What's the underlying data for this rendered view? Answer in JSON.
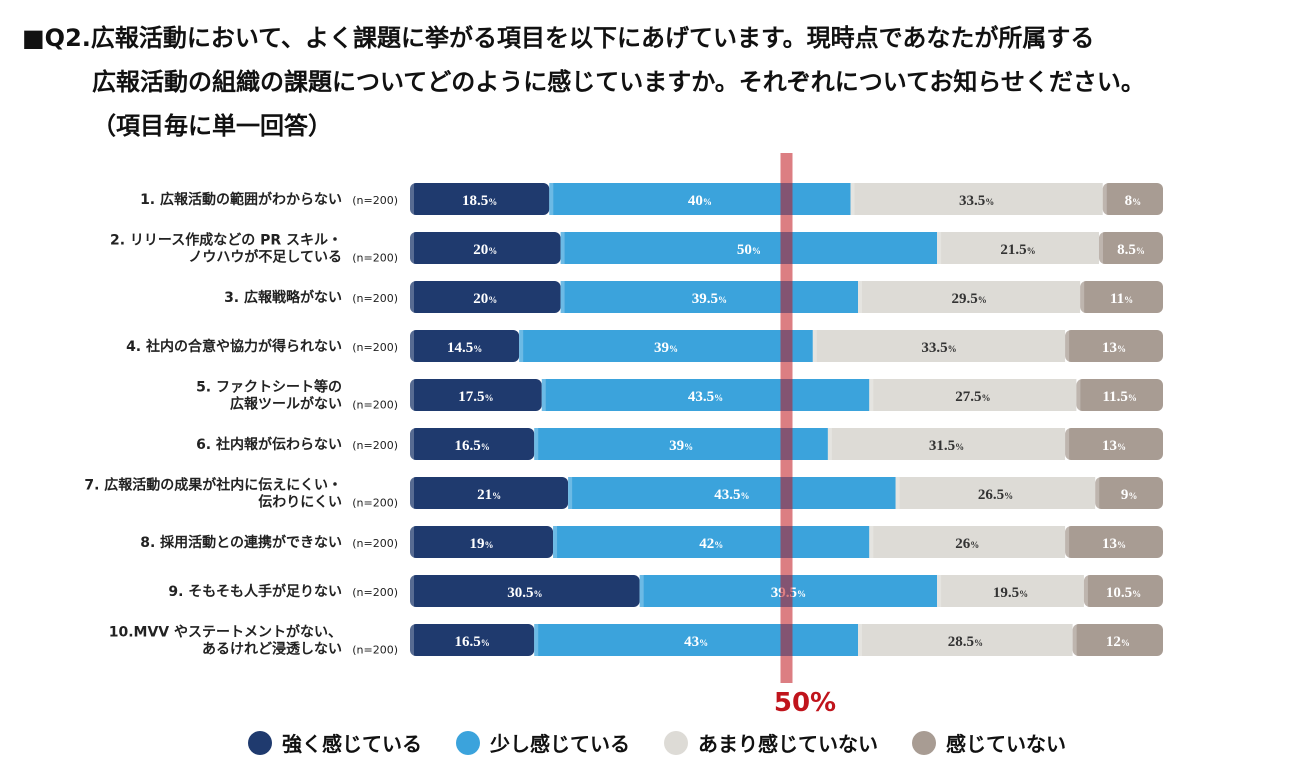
{
  "title": {
    "line1": "■Q2.広報活動において、よく課題に挙がる項目を以下にあげています。現時点であなたが所属する",
    "line2": "広報活動の組織の課題についてどのように感じていますか。それぞれについてお知らせください。",
    "line3": "（項目毎に単一回答）"
  },
  "chart_data": {
    "type": "bar",
    "orientation": "horizontal-stacked-100",
    "categories": [
      {
        "label": [
          "1. 広報活動の範囲がわからない"
        ],
        "n": "(n=200)"
      },
      {
        "label": [
          "2. リリース作成などの PR スキル・",
          "ノウハウが不足している"
        ],
        "n": "(n=200)"
      },
      {
        "label": [
          "3. 広報戦略がない"
        ],
        "n": "(n=200)"
      },
      {
        "label": [
          "4. 社内の合意や協力が得られない"
        ],
        "n": "(n=200)"
      },
      {
        "label": [
          "5. ファクトシート等の",
          "広報ツールがない"
        ],
        "n": "(n=200)"
      },
      {
        "label": [
          "6. 社内報が伝わらない"
        ],
        "n": "(n=200)"
      },
      {
        "label": [
          "7. 広報活動の成果が社内に伝えにくい・",
          "伝わりにくい"
        ],
        "n": "(n=200)"
      },
      {
        "label": [
          "8. 採用活動との連携ができない"
        ],
        "n": "(n=200)"
      },
      {
        "label": [
          "9. そもそも人手が足りない"
        ],
        "n": "(n=200)"
      },
      {
        "label": [
          "10.MVV やステートメントがない、",
          "あるけれど浸透しない"
        ],
        "n": "(n=200)"
      }
    ],
    "series": [
      {
        "name": "強く感じている",
        "color": "#1f3a6e",
        "textColor": "#ffffff",
        "values": [
          18.5,
          20,
          20,
          14.5,
          17.5,
          16.5,
          21,
          19,
          30.5,
          16.5
        ]
      },
      {
        "name": "少し感じている",
        "color": "#3ba3dc",
        "textColor": "#ffffff",
        "values": [
          40,
          50,
          39.5,
          39,
          43.5,
          39,
          43.5,
          42,
          39.5,
          43
        ]
      },
      {
        "name": "あまり感じていない",
        "color": "#dddbd6",
        "textColor": "#333333",
        "values": [
          33.5,
          21.5,
          29.5,
          33.5,
          27.5,
          31.5,
          26.5,
          26,
          19.5,
          28.5
        ]
      },
      {
        "name": "感じていない",
        "color": "#a89c93",
        "textColor": "#ffffff",
        "values": [
          8,
          8.5,
          11,
          13,
          11.5,
          13,
          9,
          13,
          10.5,
          12
        ]
      }
    ],
    "unit": "%",
    "reference_line": {
      "value": 50,
      "label": "50%",
      "color": "#c0141c"
    }
  }
}
